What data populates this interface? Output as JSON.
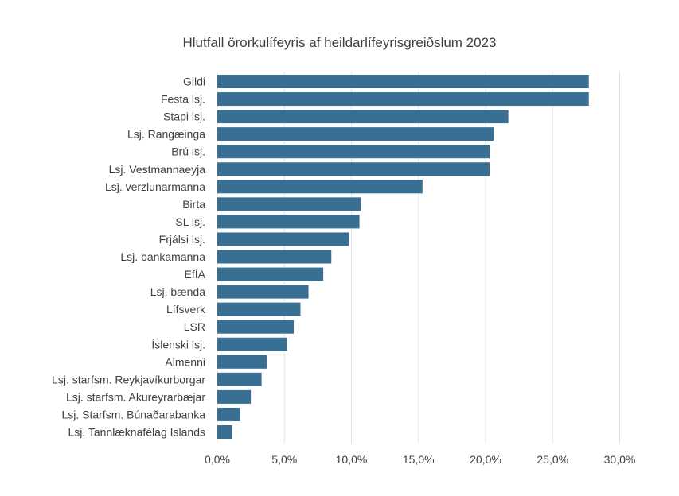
{
  "chart_data": {
    "type": "bar",
    "orientation": "horizontal",
    "title": "Hlutfall örorkulífeyris  af heildarlífeyrisgreiðslum 2023",
    "xlabel": "",
    "ylabel": "",
    "xlim": [
      0,
      30
    ],
    "x_ticks": [
      "0,0%",
      "5,0%",
      "10,0%",
      "15,0%",
      "20,0%",
      "25,0%",
      "30,0%"
    ],
    "grid": "vertical",
    "legend": "none",
    "bar_color": "#3a6f94",
    "categories": [
      "Gildi",
      "Festa lsj.",
      "Stapi lsj.",
      "Lsj. Rangæinga",
      "Brú lsj.",
      "Lsj. Vestmannaeyja",
      "Lsj. verzlunarmanna",
      "Birta",
      "SL lsj.",
      "Frjálsi lsj.",
      "Lsj. bankamanna",
      "EfÍA",
      "Lsj. bænda",
      "Lífsverk",
      "LSR",
      "Íslenski lsj.",
      "Almenni",
      "Lsj. starfsm. Reykjavíkurborgar",
      "Lsj. starfsm. Akureyrarbæjar",
      "Lsj. Starfsm. Búnaðarabanka",
      "Lsj. Tannlæknafélag Islands"
    ],
    "values": [
      27.7,
      27.7,
      21.7,
      20.6,
      20.3,
      20.3,
      15.3,
      10.7,
      10.6,
      9.8,
      8.5,
      7.9,
      6.8,
      6.2,
      5.7,
      5.2,
      3.7,
      3.3,
      2.5,
      1.7,
      1.1
    ]
  }
}
